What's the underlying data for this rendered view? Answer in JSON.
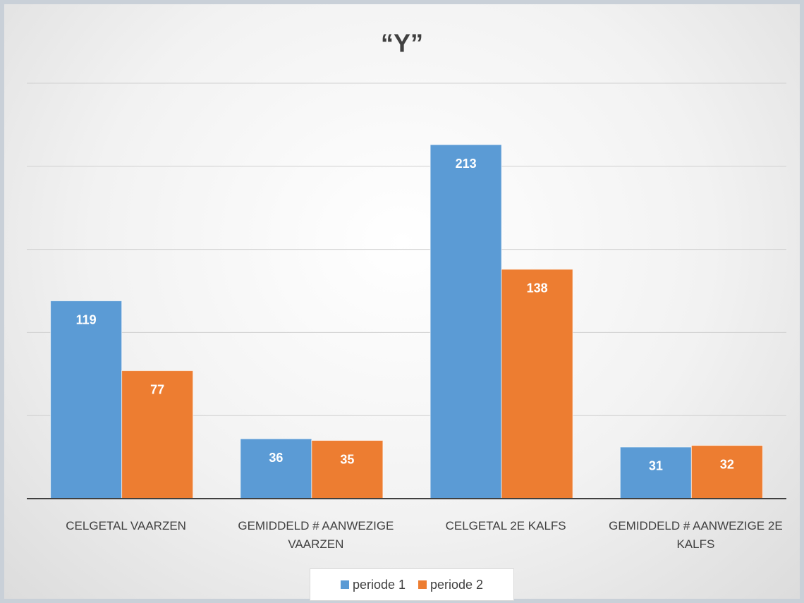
{
  "chart_data": {
    "type": "bar",
    "title": "“Y”",
    "categories": [
      "CELGETAL VAARZEN",
      "GEMIDDELD # AANWEZIGE VAARZEN",
      "CELGETAL 2E KALFS",
      "GEMIDDELD # AANWEZIGE 2E KALFS"
    ],
    "series": [
      {
        "name": "periode 1",
        "color": "#5b9bd5",
        "values": [
          119,
          36,
          213,
          31
        ]
      },
      {
        "name": "periode 2",
        "color": "#ed7d31",
        "values": [
          77,
          35,
          138,
          32
        ]
      }
    ],
    "ylim": [
      0,
      250
    ],
    "yticks": [
      0,
      50,
      100,
      150,
      200,
      250
    ],
    "grid": true,
    "legend": "bottom"
  }
}
